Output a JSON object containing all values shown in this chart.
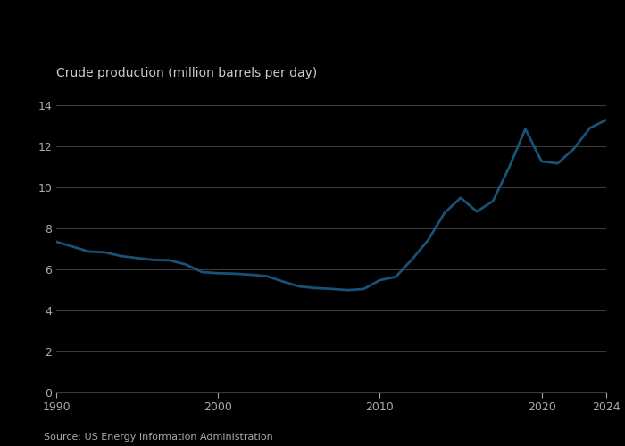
{
  "title": "Crude production (million barrels per day)",
  "source": "Source: US Energy Information Administration",
  "line_color": "#1a5276",
  "background_color": "#000000",
  "plot_bg_color": "#000000",
  "grid_color": "#3a3a3a",
  "tick_color": "#aaaaaa",
  "label_color": "#cccccc",
  "title_color": "#cccccc",
  "xlim": [
    1990,
    2024
  ],
  "ylim": [
    0,
    14.8
  ],
  "yticks": [
    0,
    2,
    4,
    6,
    8,
    10,
    12,
    14
  ],
  "xticks": [
    1990,
    2000,
    2010,
    2020,
    2024
  ],
  "years": [
    1990,
    1991,
    1992,
    1993,
    1994,
    1995,
    1996,
    1997,
    1998,
    1999,
    2000,
    2001,
    2002,
    2003,
    2004,
    2005,
    2006,
    2007,
    2008,
    2009,
    2010,
    2011,
    2012,
    2013,
    2014,
    2015,
    2016,
    2017,
    2018,
    2019,
    2020,
    2021,
    2022,
    2023,
    2024
  ],
  "values": [
    7.36,
    7.12,
    6.88,
    6.84,
    6.66,
    6.56,
    6.47,
    6.45,
    6.25,
    5.88,
    5.82,
    5.8,
    5.75,
    5.68,
    5.42,
    5.18,
    5.1,
    5.06,
    5.0,
    5.05,
    5.48,
    5.65,
    6.5,
    7.45,
    8.76,
    9.5,
    8.83,
    9.34,
    10.99,
    12.86,
    11.28,
    11.18,
    11.9,
    12.91,
    13.3
  ]
}
